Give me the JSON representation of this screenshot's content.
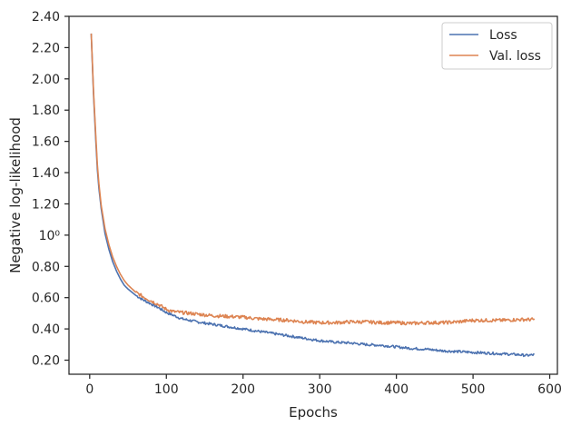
{
  "chart_data": {
    "type": "line",
    "xlabel": "Epochs",
    "ylabel": "Negative log-likelihood",
    "xlim": [
      -27,
      610
    ],
    "ylim": [
      0.11,
      2.4
    ],
    "x_ticks": [
      0,
      100,
      200,
      300,
      400,
      500,
      600
    ],
    "x_tick_labels": [
      "0",
      "100",
      "200",
      "300",
      "400",
      "500",
      "600"
    ],
    "y_ticks": [
      0.2,
      0.4,
      0.6,
      0.8,
      1.0,
      1.2,
      1.4,
      1.6,
      1.8,
      2.0,
      2.2,
      2.4
    ],
    "y_tick_labels": [
      "0.20",
      "0.40",
      "0.60",
      "0.80",
      "10⁰",
      "1.20",
      "1.40",
      "1.60",
      "1.80",
      "2.00",
      "2.20",
      "2.40"
    ],
    "grid": false,
    "legend_position": "top-right",
    "series": [
      {
        "name": "Loss",
        "color": "#4c72b0",
        "x": [
          2,
          5,
          8,
          10,
          12,
          15,
          20,
          25,
          30,
          35,
          40,
          45,
          50,
          60,
          70,
          80,
          90,
          100,
          110,
          120,
          140,
          160,
          180,
          200,
          220,
          240,
          260,
          280,
          300,
          320,
          340,
          360,
          380,
          400,
          420,
          440,
          460,
          480,
          500,
          520,
          540,
          560,
          570,
          580
        ],
        "y": [
          2.29,
          1.9,
          1.6,
          1.42,
          1.3,
          1.17,
          1.01,
          0.91,
          0.83,
          0.77,
          0.72,
          0.68,
          0.655,
          0.615,
          0.585,
          0.56,
          0.535,
          0.505,
          0.485,
          0.465,
          0.445,
          0.43,
          0.415,
          0.4,
          0.385,
          0.37,
          0.355,
          0.34,
          0.325,
          0.315,
          0.31,
          0.3,
          0.295,
          0.285,
          0.275,
          0.27,
          0.26,
          0.255,
          0.25,
          0.245,
          0.24,
          0.235,
          0.23,
          0.235
        ]
      },
      {
        "name": "Val. loss",
        "color": "#dd8452",
        "x": [
          2,
          5,
          8,
          10,
          12,
          15,
          20,
          25,
          30,
          35,
          40,
          45,
          50,
          60,
          70,
          80,
          90,
          100,
          110,
          120,
          140,
          160,
          180,
          200,
          220,
          240,
          260,
          280,
          300,
          320,
          340,
          360,
          380,
          400,
          420,
          440,
          460,
          480,
          500,
          520,
          540,
          560,
          570,
          580
        ],
        "y": [
          2.29,
          1.92,
          1.63,
          1.45,
          1.33,
          1.19,
          1.04,
          0.94,
          0.86,
          0.8,
          0.75,
          0.71,
          0.68,
          0.635,
          0.605,
          0.58,
          0.555,
          0.525,
          0.51,
          0.505,
          0.495,
          0.485,
          0.48,
          0.475,
          0.465,
          0.46,
          0.455,
          0.445,
          0.44,
          0.44,
          0.445,
          0.445,
          0.44,
          0.44,
          0.435,
          0.44,
          0.44,
          0.445,
          0.455,
          0.455,
          0.455,
          0.46,
          0.46,
          0.46
        ]
      }
    ]
  }
}
